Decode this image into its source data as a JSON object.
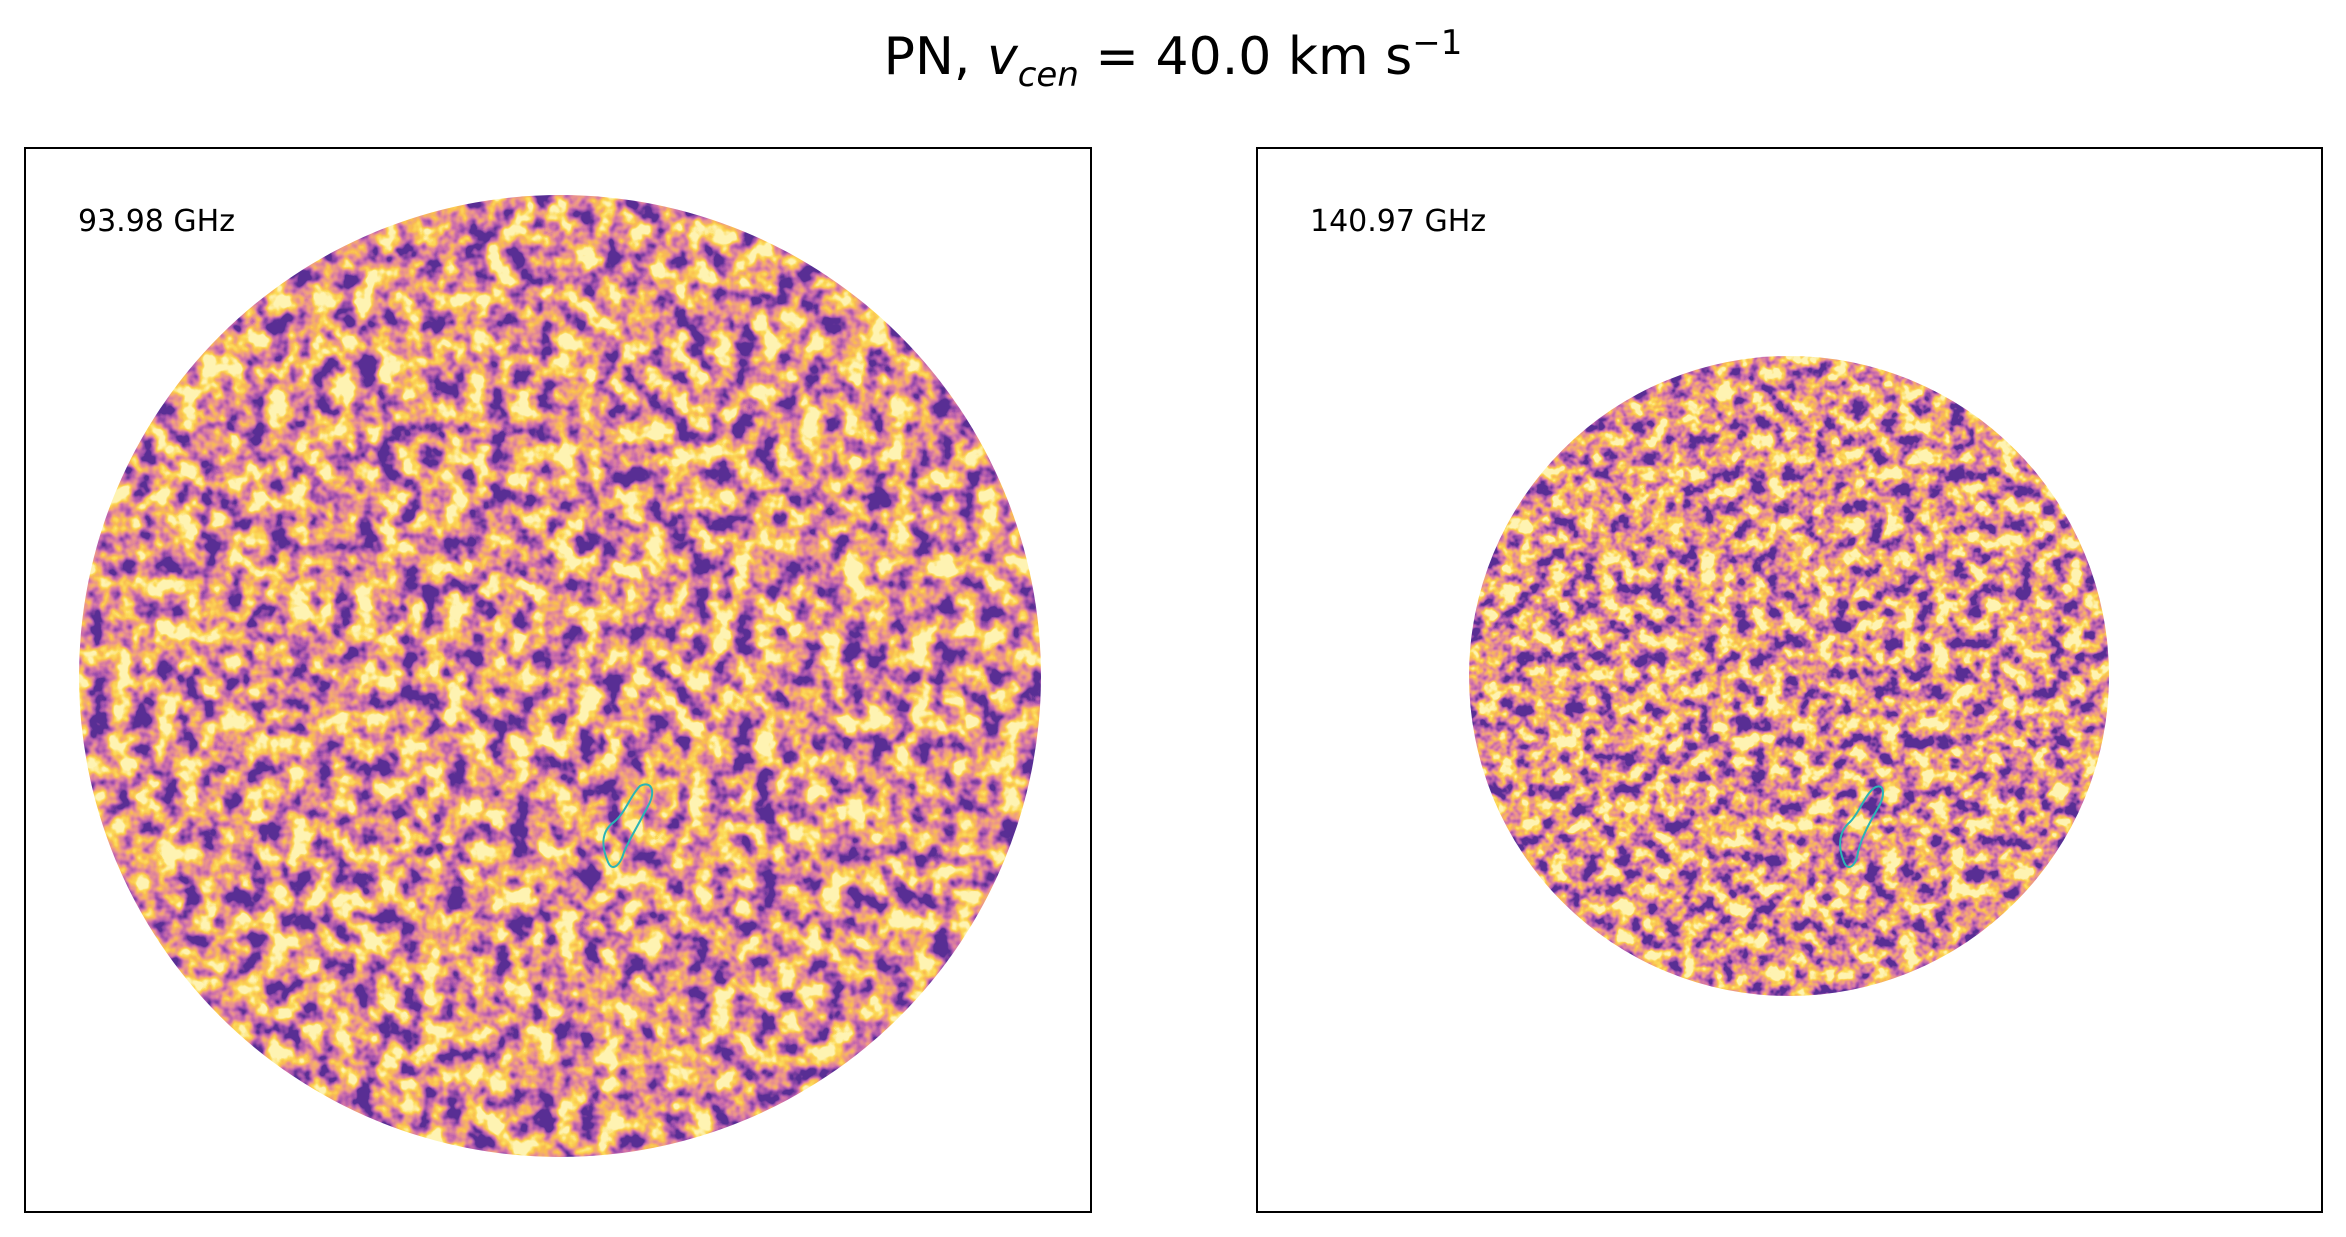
{
  "title": {
    "prefix": "PN, ",
    "symbol": "v",
    "subscript": "cen",
    "middle": " =  40.0 km s",
    "superscript": "−1"
  },
  "panels": [
    {
      "label": "93.98 GHz"
    },
    {
      "label": "140.97 GHz"
    }
  ]
}
